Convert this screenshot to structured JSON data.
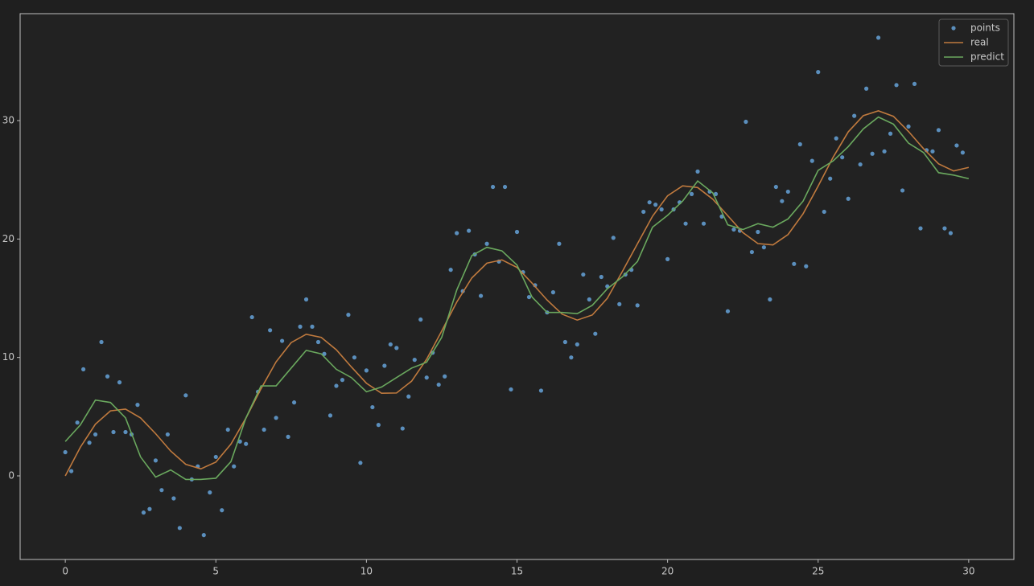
{
  "chart_data": {
    "type": "line",
    "xlim": [
      -1.5,
      31.5
    ],
    "ylim": [
      -7.06,
      39.03
    ],
    "xticks": [
      0,
      5,
      10,
      15,
      20,
      25,
      30
    ],
    "yticks": [
      0,
      10,
      20,
      30
    ],
    "legend": "upper right",
    "series": [
      {
        "name": "points",
        "style": "markers",
        "color": "#5b8fbd",
        "x": [
          0,
          0.2,
          0.4,
          0.6,
          0.8,
          1,
          1.2,
          1.4,
          1.6,
          1.8,
          2,
          2.2,
          2.4,
          2.6,
          2.8,
          3,
          3.2,
          3.4,
          3.6,
          3.8,
          4,
          4.2,
          4.4,
          4.6,
          4.8,
          5,
          5.2,
          5.4,
          5.6,
          5.8,
          6,
          6.2,
          6.4,
          6.6,
          6.8,
          7,
          7.2,
          7.4,
          7.6,
          7.8,
          8,
          8.2,
          8.4,
          8.6,
          8.8,
          9,
          9.2,
          9.4,
          9.6,
          9.8,
          10,
          10.2,
          10.4,
          10.6,
          10.8,
          11,
          11.2,
          11.4,
          11.6,
          11.8,
          12,
          12.2,
          12.4,
          12.6,
          12.8,
          13,
          13.2,
          13.4,
          13.6,
          13.8,
          14,
          14.2,
          14.4,
          14.6,
          14.8,
          15,
          15.2,
          15.4,
          15.6,
          15.8,
          16,
          16.2,
          16.4,
          16.6,
          16.8,
          17,
          17.2,
          17.4,
          17.6,
          17.8,
          18,
          18.2,
          18.4,
          18.6,
          18.8,
          19,
          19.2,
          19.4,
          19.6,
          19.8,
          20,
          20.2,
          20.4,
          20.6,
          20.8,
          21,
          21.2,
          21.4,
          21.6,
          21.8,
          22,
          22.2,
          22.4,
          22.6,
          22.8,
          23,
          23.2,
          23.4,
          23.6,
          23.8,
          24,
          24.2,
          24.4,
          24.6,
          24.8,
          25,
          25.2,
          25.4,
          25.6,
          25.8,
          26,
          26.2,
          26.4,
          26.6,
          26.8,
          27,
          27.2,
          27.4,
          27.6,
          27.8,
          28,
          28.2,
          28.4,
          28.6,
          28.8,
          29,
          29.2,
          29.4,
          29.6,
          29.8
        ],
        "values": [
          2.0,
          0.4,
          4.5,
          9.0,
          2.8,
          3.5,
          11.3,
          8.4,
          3.7,
          7.9,
          3.7,
          3.5,
          6.0,
          -3.1,
          -2.8,
          1.3,
          -1.2,
          3.5,
          -1.9,
          -4.4,
          6.8,
          -0.3,
          0.8,
          -5.0,
          -1.4,
          1.6,
          -2.9,
          3.9,
          0.8,
          2.9,
          2.7,
          13.4,
          7.1,
          3.9,
          12.3,
          4.9,
          11.4,
          3.3,
          6.2,
          12.6,
          14.9,
          12.6,
          11.3,
          10.3,
          5.1,
          7.6,
          8.1,
          13.6,
          10.0,
          1.1,
          8.9,
          5.8,
          4.3,
          9.3,
          11.1,
          10.8,
          4.0,
          6.7,
          9.8,
          13.2,
          8.3,
          10.4,
          7.7,
          8.4,
          17.4,
          20.5,
          15.6,
          20.7,
          18.7,
          15.2,
          19.6,
          24.4,
          18.1,
          24.4,
          7.3,
          20.6,
          17.2,
          15.1,
          16.1,
          7.2,
          13.8,
          15.5,
          19.6,
          11.3,
          10.0,
          11.1,
          17.0,
          14.9,
          12.0,
          16.8,
          16.0,
          20.1,
          14.5,
          17.0,
          17.4,
          14.4,
          22.3,
          23.1,
          22.9,
          22.5,
          18.3,
          22.5,
          23.1,
          21.3,
          23.8,
          25.7,
          21.3,
          24.0,
          23.8,
          21.9,
          13.9,
          20.8,
          20.7,
          29.9,
          18.9,
          20.6,
          19.3,
          14.9,
          24.4,
          23.2,
          24.0,
          17.9,
          28.0,
          17.7,
          26.6,
          34.1,
          22.3,
          25.1,
          28.5,
          26.9,
          23.4,
          30.4,
          26.3,
          32.7,
          27.2,
          37.0,
          27.4,
          28.9,
          33.0,
          24.1,
          29.5,
          33.1,
          20.9,
          27.5,
          27.4,
          29.2,
          20.9,
          20.5,
          27.9,
          27.3
        ]
      },
      {
        "name": "real",
        "style": "line",
        "color": "#c07a3e",
        "x": [
          0,
          0.5,
          1,
          1.5,
          2,
          2.5,
          3,
          3.5,
          4,
          4.5,
          5,
          5.5,
          6,
          6.5,
          7,
          7.5,
          8,
          8.5,
          9,
          9.5,
          10,
          10.5,
          11,
          11.5,
          12,
          12.5,
          13,
          13.5,
          14,
          14.5,
          15,
          15.5,
          16,
          16.5,
          17,
          17.5,
          18,
          18.5,
          19,
          19.5,
          20,
          20.5,
          21,
          21.5,
          22,
          22.5,
          23,
          23.5,
          24,
          24.5,
          25,
          25.5,
          26,
          26.5,
          27,
          27.5,
          28,
          28.5,
          29,
          29.5,
          30
        ],
        "values": [
          0,
          2.418,
          4.366,
          5.49,
          5.637,
          4.894,
          3.564,
          2.097,
          0.973,
          0.59,
          1.164,
          2.678,
          4.882,
          7.36,
          9.628,
          11.252,
          11.958,
          11.694,
          10.648,
          9.199,
          7.824,
          6.981,
          7.0,
          7.998,
          9.854,
          12.235,
          14.681,
          16.715,
          17.962,
          18.24,
          17.601,
          16.274,
          14.848,
          13.652,
          13.154,
          13.584,
          14.996,
          17.268,
          19.6,
          21.922,
          23.652,
          24.487,
          24.347,
          23.371,
          21.965,
          20.551,
          19.615,
          19.505,
          20.378,
          22.134,
          24.47,
          26.92,
          29.05,
          30.423,
          30.826,
          30.36,
          29.084,
          27.63,
          26.346,
          25.748,
          26.048
        ]
      },
      {
        "name": "predict",
        "style": "line",
        "color": "#6aa85e",
        "x": [
          0,
          0.5,
          1,
          1.5,
          2,
          2.5,
          3,
          3.5,
          4,
          4.5,
          5,
          5.5,
          6,
          6.5,
          7,
          7.5,
          8,
          8.5,
          9,
          9.5,
          10,
          10.5,
          11,
          11.5,
          12,
          12.5,
          13,
          13.5,
          14,
          14.5,
          15,
          15.5,
          16,
          16.5,
          17,
          17.5,
          18,
          18.5,
          19,
          19.5,
          20,
          20.5,
          21,
          21.5,
          22,
          22.5,
          23,
          23.5,
          24,
          24.5,
          25,
          25.5,
          26,
          26.5,
          27,
          27.5,
          28,
          28.5,
          29,
          29.5,
          30
        ],
        "values": [
          2.9,
          4.3,
          6.4,
          6.2,
          4.9,
          1.6,
          -0.1,
          0.5,
          -0.3,
          -0.3,
          -0.2,
          1.2,
          4.9,
          7.6,
          7.6,
          9.1,
          10.6,
          10.3,
          9.0,
          8.3,
          7.1,
          7.5,
          8.3,
          9.1,
          9.6,
          11.7,
          15.7,
          18.6,
          19.3,
          19.0,
          17.8,
          15.1,
          13.8,
          13.8,
          13.7,
          14.4,
          15.8,
          16.8,
          18.1,
          21.0,
          22.0,
          23.2,
          24.9,
          23.9,
          21.2,
          20.8,
          21.3,
          21.0,
          21.7,
          23.2,
          25.8,
          26.6,
          27.8,
          29.3,
          30.3,
          29.7,
          28.1,
          27.3,
          25.6,
          25.4,
          25.1
        ]
      }
    ]
  }
}
